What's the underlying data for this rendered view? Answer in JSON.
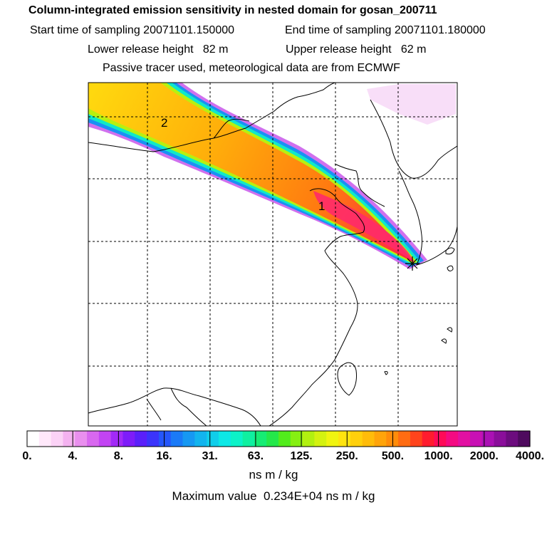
{
  "header": {
    "title": "Column-integrated emission sensitivity in nested domain for gosan_200711",
    "start_time": "Start time of sampling 20071101.150000",
    "end_time": "End time of sampling 20071101.180000",
    "lower_release": "Lower release height   82 m",
    "upper_release": "Upper release height   62 m",
    "tracer_note": "Passive tracer used, meteorological data are from ECMWF"
  },
  "map": {
    "plume_labels": [
      "2",
      "1"
    ],
    "receptor_marker": "star"
  },
  "colorbar": {
    "ticks": [
      "0.",
      "4.",
      "8.",
      "16.",
      "31.",
      "63.",
      "125.",
      "250.",
      "500.",
      "1000.",
      "2000.",
      "4000."
    ],
    "colors": [
      "#ffffff",
      "#ffe8fa",
      "#fbd2f6",
      "#f4b2f0",
      "#e98fee",
      "#d868ef",
      "#c244f3",
      "#a22af7",
      "#7e1cf9",
      "#5a20fa",
      "#3b34fb",
      "#2556fb",
      "#1a7af7",
      "#1698f2",
      "#12b4ee",
      "#10ceea",
      "#0de8e6",
      "#0cf2c8",
      "#0ff0a0",
      "#16ec74",
      "#24e84a",
      "#52ec1c",
      "#86f012",
      "#b2f010",
      "#d4f210",
      "#f0f410",
      "#ffe40e",
      "#ffd00c",
      "#ffbc0a",
      "#ffa40a",
      "#ff8c0a",
      "#ff6c12",
      "#ff441c",
      "#ff1c2e",
      "#ff0a58",
      "#f40a82",
      "#e210a2",
      "#c810b4",
      "#aa10b4",
      "#8a0e9a",
      "#6c0c7e",
      "#4e0a5e"
    ],
    "units": "ns m / kg"
  },
  "footer": {
    "max_value": "Maximum value  0.234E+04 ns m / kg"
  }
}
